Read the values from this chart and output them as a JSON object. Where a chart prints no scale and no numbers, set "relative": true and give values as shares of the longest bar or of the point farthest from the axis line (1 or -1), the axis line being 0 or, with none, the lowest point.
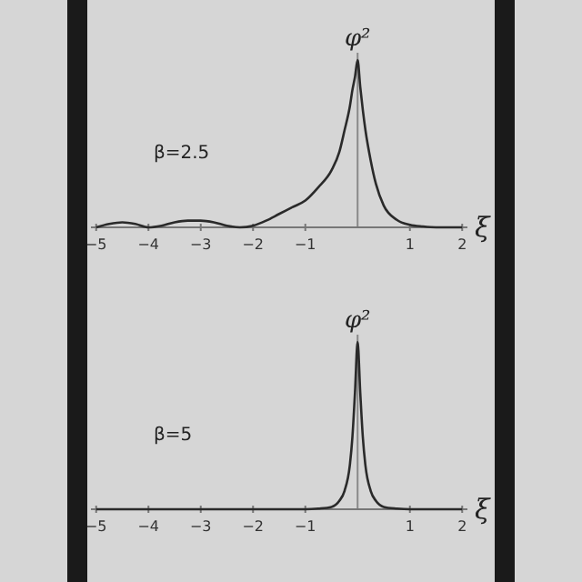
{
  "chart_data": [
    {
      "type": "line",
      "relative": true,
      "xlabel": "ξ",
      "ylabel": "φ²",
      "annotations": [
        "β=2.5"
      ],
      "xlim": [
        -5.1,
        2.1
      ],
      "xticks": [
        -5,
        -4,
        -3,
        -2,
        -1,
        1,
        2
      ],
      "series": [
        {
          "color": "#2a2a2a",
          "x": [
            -5,
            -4.75,
            -4.5,
            -4.25,
            -4,
            -3.75,
            -3.5,
            -3.25,
            -3,
            -2.75,
            -2.5,
            -2.25,
            -2,
            -1.75,
            -1.5,
            -1.25,
            -1,
            -0.75,
            -0.5,
            -0.35,
            -0.25,
            -0.15,
            -0.1,
            -0.05,
            0,
            0.05,
            0.1,
            0.15,
            0.25,
            0.35,
            0.5,
            0.75,
            1,
            1.25,
            1.5,
            2
          ],
          "values": [
            0,
            0.02,
            0.03,
            0.02,
            0,
            0.01,
            0.03,
            0.04,
            0.04,
            0.03,
            0.01,
            0,
            0.01,
            0.04,
            0.08,
            0.12,
            0.16,
            0.24,
            0.34,
            0.45,
            0.58,
            0.72,
            0.82,
            0.9,
            1,
            0.84,
            0.7,
            0.58,
            0.4,
            0.26,
            0.13,
            0.045,
            0.015,
            0.005,
            0,
            0
          ]
        }
      ]
    },
    {
      "type": "line",
      "relative": true,
      "xlabel": "ξ",
      "ylabel": "φ²",
      "annotations": [
        "β=5"
      ],
      "xlim": [
        -5.1,
        2.1
      ],
      "xticks": [
        -5,
        -4,
        -3,
        -2,
        -1,
        1,
        2
      ],
      "series": [
        {
          "color": "#2a2a2a",
          "x": [
            -5,
            -2,
            -1,
            -0.75,
            -0.5,
            -0.35,
            -0.25,
            -0.15,
            -0.1,
            -0.05,
            0,
            0.05,
            0.1,
            0.15,
            0.25,
            0.35,
            0.5,
            0.75,
            1,
            2
          ],
          "values": [
            0,
            0,
            0,
            0.004,
            0.014,
            0.05,
            0.11,
            0.26,
            0.43,
            0.7,
            1,
            0.7,
            0.43,
            0.26,
            0.11,
            0.05,
            0.014,
            0.004,
            0,
            0
          ]
        }
      ]
    }
  ]
}
